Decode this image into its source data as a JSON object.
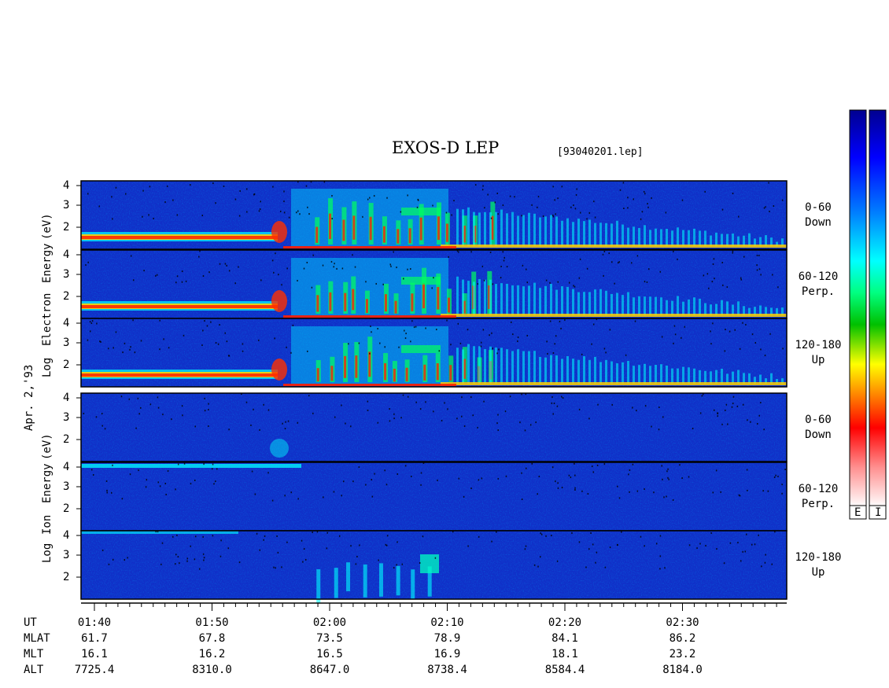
{
  "title": "EXOS-D LEP",
  "file_label": "[93040201.lep]",
  "date_label": "Apr. 2,'93",
  "electron_axis_label": [
    "Log",
    "Electron",
    "Energy",
    "(eV)"
  ],
  "ion_axis_label": [
    "Log",
    "Ion",
    "Energy",
    "(eV)"
  ],
  "colorbar_labels": [
    "E",
    "I"
  ],
  "colors": {
    "background": "#1030c8",
    "colorbar_stops": [
      "#ffffff",
      "#ff9090",
      "#ff0000",
      "#ff8000",
      "#ffff00",
      "#00c000",
      "#00ff80",
      "#00ffff",
      "#0080ff",
      "#0000ff",
      "#000090"
    ]
  },
  "chart_data": {
    "type": "heatmap",
    "ytick_labels": [
      "4",
      "3",
      "2"
    ],
    "panels": [
      {
        "species": "Electron",
        "pitch_angle": "0-60",
        "direction": "Down"
      },
      {
        "species": "Electron",
        "pitch_angle": "60-120",
        "direction": "Perp."
      },
      {
        "species": "Electron",
        "pitch_angle": "120-180",
        "direction": "Up"
      },
      {
        "species": "Ion",
        "pitch_angle": "0-60",
        "direction": "Down"
      },
      {
        "species": "Ion",
        "pitch_angle": "60-120",
        "direction": "Perp."
      },
      {
        "species": "Ion",
        "pitch_angle": "120-180",
        "direction": "Up"
      }
    ],
    "x_row_labels": [
      "UT",
      "MLAT",
      "MLT",
      "ALT"
    ],
    "x_ticks": [
      {
        "UT": "01:40",
        "MLAT": "61.7",
        "MLT": "16.1",
        "ALT": "7725.4"
      },
      {
        "UT": "01:50",
        "MLAT": "67.8",
        "MLT": "16.2",
        "ALT": "8310.0"
      },
      {
        "UT": "02:00",
        "MLAT": "73.5",
        "MLT": "16.5",
        "ALT": "8647.0"
      },
      {
        "UT": "02:10",
        "MLAT": "78.9",
        "MLT": "16.9",
        "ALT": "8738.4"
      },
      {
        "UT": "02:20",
        "MLAT": "84.1",
        "MLT": "18.1",
        "ALT": "8584.4"
      },
      {
        "UT": "02:30",
        "MLAT": "86.2",
        "MLT": "23.2",
        "ALT": "8184.0"
      }
    ]
  }
}
